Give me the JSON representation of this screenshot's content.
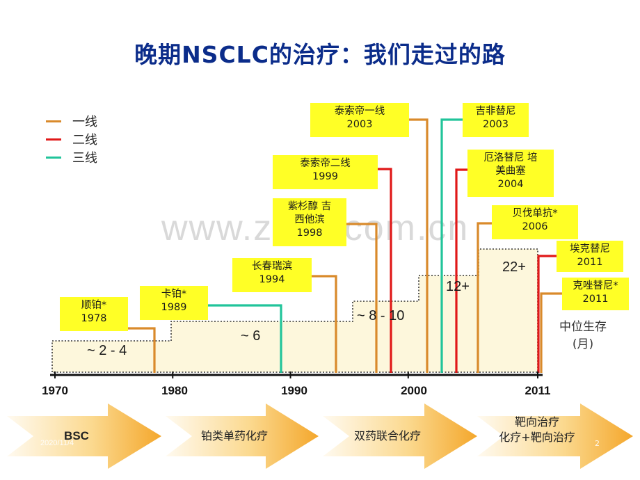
{
  "title": "晚期NSCLC的治疗：我们走过的路",
  "legend": [
    {
      "label": "一线",
      "color": "#d98a2b"
    },
    {
      "label": "二线",
      "color": "#e01818"
    },
    {
      "label": "三线",
      "color": "#21c49a"
    }
  ],
  "watermark": "www.zixin.com.cn",
  "axis": {
    "ticks": [
      "1970",
      "1980",
      "1990",
      "2000",
      "2011"
    ],
    "tick_years": [
      1970,
      1980,
      1990,
      2000,
      2011
    ],
    "range": [
      1970,
      2011
    ]
  },
  "drugs": [
    {
      "name": "顺铂*",
      "year": "1978",
      "line": 1,
      "color": "#d98a2b"
    },
    {
      "name": "卡铂*",
      "year": "1989",
      "line": 3,
      "color": "#21c49a"
    },
    {
      "name": "长春瑞滨",
      "year": "1994",
      "line": 1,
      "color": "#d98a2b"
    },
    {
      "name": "紫杉醇 吉西他滨",
      "year": "1998",
      "line": 1,
      "color": "#d98a2b"
    },
    {
      "name": "泰索帝二线",
      "year": "1999",
      "line": 2,
      "color": "#e01818"
    },
    {
      "name": "泰索帝一线",
      "year": "2003",
      "line": 1,
      "color": "#d98a2b"
    },
    {
      "name": "吉非替尼",
      "year": "2003",
      "line": 3,
      "color": "#21c49a"
    },
    {
      "name": "厄洛替尼 培美曲塞",
      "year": "2004",
      "line": 2,
      "color": "#e01818"
    },
    {
      "name": "贝伐单抗*",
      "year": "2006",
      "line": 1,
      "color": "#d98a2b"
    },
    {
      "name": "埃克替尼",
      "year": "2011",
      "line": 2,
      "color": "#e01818"
    },
    {
      "name": "克唑替尼*",
      "year": "2011",
      "line": 1,
      "color": "#d98a2b"
    }
  ],
  "survival_plateaus": [
    "~ 2 - 4",
    "~ 6",
    "~ 8 - 10",
    "12+",
    "22+"
  ],
  "survival_label": {
    "line1": "中位生存",
    "line2": "(月)"
  },
  "phases": [
    {
      "label": "BSC"
    },
    {
      "label": "铂类单药化疗"
    },
    {
      "label": "双药联合化疗"
    },
    {
      "label": "靶向治疗",
      "label2": "化疗+靶向治疗"
    }
  ],
  "footer": {
    "date": "2020/11/4",
    "page": "2"
  }
}
